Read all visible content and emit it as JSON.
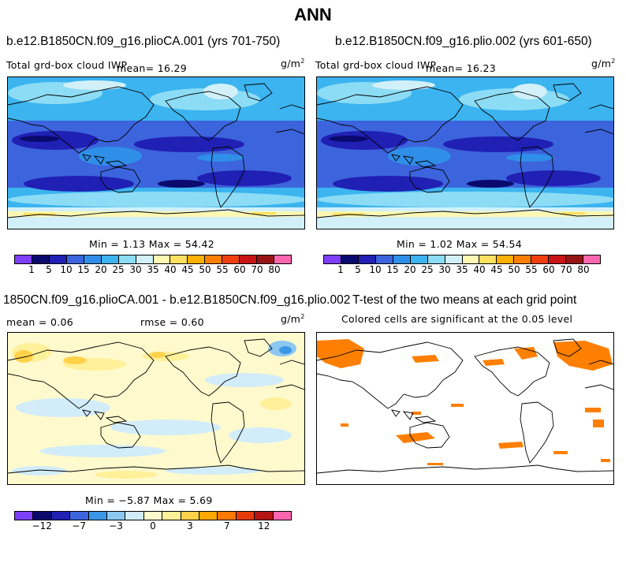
{
  "main_title": "ANN",
  "panels": [
    {
      "title": "b.e12.B1850CN.f09_g16.plioCA.001 (yrs 701-750)",
      "variable": "Total grd-box cloud IWP",
      "mean_text": "mean=  16.29",
      "units": "g/m",
      "units_exp": "2",
      "minmax": "Min =   1.13 Max =  54.42"
    },
    {
      "title": "b.e12.B1850CN.f09_g16.plio.002 (yrs 601-650)",
      "variable": "Total grd-box cloud IWP",
      "mean_text": "mean=  16.23",
      "units": "g/m",
      "units_exp": "2",
      "minmax": "Min =   1.02 Max =  54.54"
    },
    {
      "title": "1850CN.f09_g16.plioCA.001 - b.e12.B1850CN.f09_g16.plio.002",
      "mean_text": "mean =   0.06",
      "rmse_text": "rmse =   0.60",
      "units": "g/m",
      "units_exp": "2",
      "minmax": "Min =  −5.87 Max =   5.69"
    },
    {
      "title": "T-test of the two means at each grid point",
      "subtitle": "Colored cells are significant at the 0.05 level"
    }
  ],
  "chart_data": [
    {
      "type": "heatmap",
      "panel": "top-left map",
      "units": "g/m2",
      "mean": 16.29,
      "min": 1.13,
      "max": 54.42,
      "colorbar_levels": [
        1,
        5,
        10,
        15,
        20,
        25,
        30,
        35,
        40,
        45,
        50,
        55,
        60,
        70,
        80
      ],
      "colorbar_labels": [
        "1",
        "5",
        "10",
        "15",
        "20",
        "25",
        "30",
        "35",
        "40",
        "45",
        "50",
        "55",
        "60",
        "70",
        "80"
      ]
    },
    {
      "type": "heatmap",
      "panel": "top-right map",
      "units": "g/m2",
      "mean": 16.23,
      "min": 1.02,
      "max": 54.54,
      "colorbar_levels": [
        1,
        5,
        10,
        15,
        20,
        25,
        30,
        35,
        40,
        45,
        50,
        55,
        60,
        70,
        80
      ],
      "colorbar_labels": [
        "1",
        "5",
        "10",
        "15",
        "20",
        "25",
        "30",
        "35",
        "40",
        "45",
        "50",
        "55",
        "60",
        "70",
        "80"
      ]
    },
    {
      "type": "heatmap",
      "panel": "bottom-left difference map",
      "units": "g/m2",
      "mean": 0.06,
      "rmse": 0.6,
      "min": -5.87,
      "max": 5.69,
      "colorbar_labels": [
        "−12",
        "−7",
        "−3",
        "0",
        "3",
        "7",
        "12"
      ]
    },
    {
      "type": "heatmap",
      "panel": "bottom-right significance map",
      "significance_level": 0.05,
      "significant_color": "#ff7f00"
    }
  ],
  "colors": {
    "abs_scale": [
      "#7f3fff",
      "#0a0a6e",
      "#2020b4",
      "#3c64dc",
      "#2f8fe8",
      "#3cb4f0",
      "#8cdcf5",
      "#d2f0fa",
      "#fff8b4",
      "#ffe060",
      "#ffb000",
      "#ff8000",
      "#f04010",
      "#c81414",
      "#961414",
      "#ff66b0"
    ],
    "diff_scale": [
      "#7f3fff",
      "#0a0a6e",
      "#2020b4",
      "#3c64dc",
      "#3c96e6",
      "#8cc8f0",
      "#d2ecfa",
      "#fffacd",
      "#fff09a",
      "#ffd24a",
      "#ffa800",
      "#ff7800",
      "#e63c0a",
      "#b41414",
      "#ff66b0"
    ],
    "significant": "#ff7f00"
  }
}
